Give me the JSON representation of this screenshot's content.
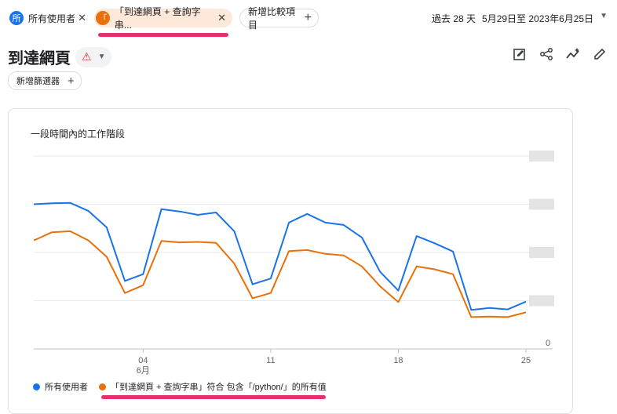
{
  "top": {
    "chip_all_users": {
      "badge": "所",
      "label": "所有使用者"
    },
    "chip_segment": {
      "badge": "「",
      "label": "「到達網頁 + 查詢字串..."
    },
    "add_comparison": "新增比較項目",
    "close_glyph": "✕",
    "plus_glyph": "+",
    "date_period": "過去 28 天",
    "date_range": "5月29日至 2023年6月25日"
  },
  "header": {
    "title": "到達網頁",
    "warning_glyph": "⚠",
    "add_filter": "新增篩選器"
  },
  "toolbar_icons": [
    "edit-report-icon",
    "share-icon",
    "insights-icon",
    "pencil-icon"
  ],
  "card": {
    "title": "一段時間內的工作階段"
  },
  "colors": {
    "blue": "#1a73e8",
    "orange": "#e8710a",
    "highlight": "#ea2d6e"
  },
  "chart_data": {
    "type": "line",
    "title": "一段時間內的工作階段",
    "x": [
      "05-29",
      "05-30",
      "05-31",
      "06-01",
      "06-02",
      "06-03",
      "06-04",
      "06-05",
      "06-06",
      "06-07",
      "06-08",
      "06-09",
      "06-10",
      "06-11",
      "06-12",
      "06-13",
      "06-14",
      "06-15",
      "06-16",
      "06-17",
      "06-18",
      "06-19",
      "06-20",
      "06-21",
      "06-22",
      "06-23",
      "06-24",
      "06-25"
    ],
    "x_tick_labels": [
      {
        "index": 6,
        "label": "04",
        "sub": "6月"
      },
      {
        "index": 13,
        "label": "11",
        "sub": ""
      },
      {
        "index": 20,
        "label": "18",
        "sub": ""
      },
      {
        "index": 27,
        "label": "25",
        "sub": ""
      }
    ],
    "y_tick_labels": [
      "0"
    ],
    "ylim": [
      0,
      4
    ],
    "grid": true,
    "series": [
      {
        "name": "所有使用者",
        "color": "#1a73e8",
        "values": [
          3.0,
          3.02,
          3.03,
          2.86,
          2.52,
          1.41,
          1.55,
          2.9,
          2.85,
          2.78,
          2.83,
          2.44,
          1.34,
          1.46,
          2.62,
          2.8,
          2.62,
          2.57,
          2.31,
          1.6,
          1.21,
          2.34,
          2.19,
          2.02,
          0.81,
          0.85,
          0.82,
          0.98
        ]
      },
      {
        "name": "「到達網頁 + 查詢字串」符合 包含「/python/」的所有值",
        "color": "#e8710a",
        "values": [
          2.25,
          2.42,
          2.44,
          2.25,
          1.91,
          1.16,
          1.32,
          2.24,
          2.21,
          2.22,
          2.2,
          1.77,
          1.05,
          1.16,
          2.03,
          2.05,
          1.97,
          1.94,
          1.71,
          1.3,
          0.97,
          1.71,
          1.65,
          1.55,
          0.66,
          0.67,
          0.66,
          0.76
        ]
      }
    ]
  }
}
